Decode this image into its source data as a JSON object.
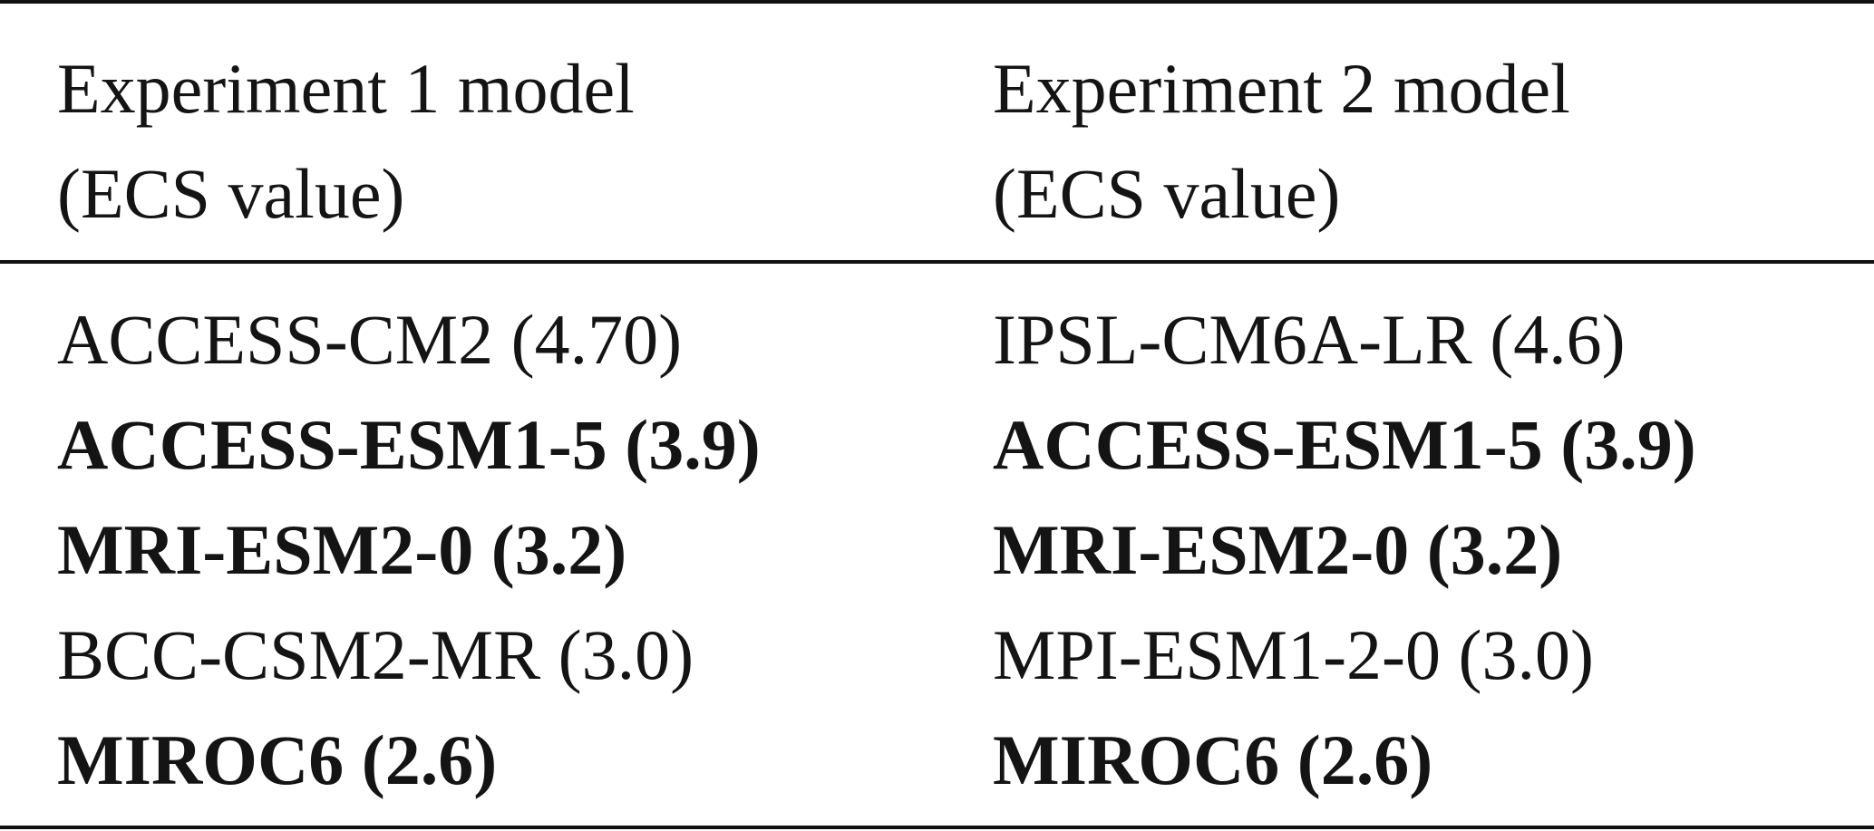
{
  "table": {
    "headers": [
      {
        "line1": "Experiment 1 model",
        "line2": "(ECS value)"
      },
      {
        "line1": "Experiment 2 model",
        "line2": "(ECS value)"
      }
    ],
    "rows": [
      {
        "exp1": "ACCESS-CM2 (4.70)",
        "exp2": "IPSL-CM6A-LR (4.6)",
        "bold": false
      },
      {
        "exp1": "ACCESS-ESM1-5 (3.9)",
        "exp2": "ACCESS-ESM1-5 (3.9)",
        "bold": true
      },
      {
        "exp1": "MRI-ESM2-0 (3.2)",
        "exp2": "MRI-ESM2-0 (3.2)",
        "bold": true
      },
      {
        "exp1": "BCC-CSM2-MR (3.0)",
        "exp2": "MPI-ESM1-2-0 (3.0)",
        "bold": false
      },
      {
        "exp1": "MIROC6 (2.6)",
        "exp2": "MIROC6 (2.6)",
        "bold": true
      }
    ]
  }
}
